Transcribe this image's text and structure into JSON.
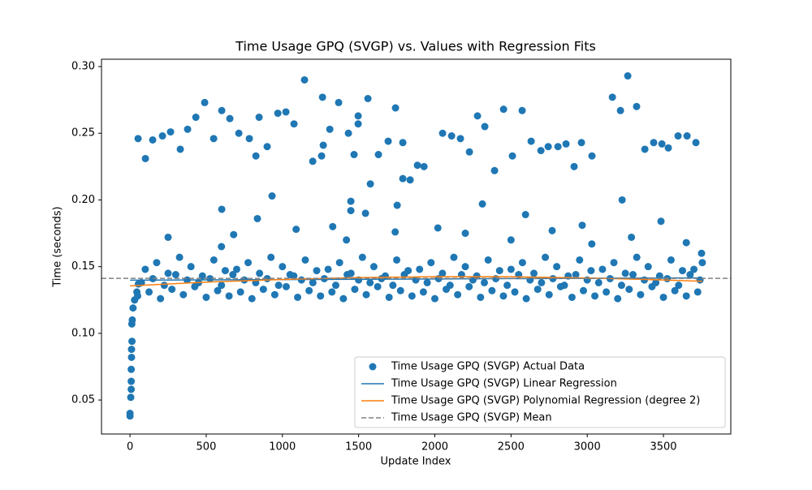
{
  "chart_data": {
    "type": "scatter",
    "title": "Time Usage GPQ (SVGP) vs. Values with Regression Fits",
    "x_label": "Update Index",
    "y_label": "Time (seconds)",
    "xlim": [
      -187,
      3942
    ],
    "ylim": [
      0.0245,
      0.3055
    ],
    "xticks": [
      0,
      500,
      1000,
      1500,
      2000,
      2500,
      3000,
      3500
    ],
    "yticks": [
      0.05,
      {
        "value": 0.1,
        "label": "0.10"
      },
      0.15,
      {
        "value": 0.2,
        "label": "0.20"
      },
      0.25,
      {
        "value": 0.3,
        "label": "0.30"
      }
    ],
    "legend": "lower right",
    "series": [
      {
        "name": "Time Usage GPQ (SVGP) Actual Data",
        "color": "#1f77b4",
        "marker": "o",
        "x": [
          0,
          0,
          5,
          8,
          8,
          8,
          10,
          10,
          13,
          12,
          15,
          20,
          30,
          45,
          55,
          50,
          75,
          100,
          125,
          150,
          175,
          200,
          225,
          250,
          275,
          300,
          325,
          350,
          375,
          400,
          425,
          450,
          475,
          500,
          525,
          550,
          575,
          600,
          625,
          650,
          675,
          700,
          725,
          750,
          775,
          800,
          825,
          850,
          875,
          900,
          925,
          950,
          975,
          1000,
          1025,
          1050,
          1075,
          1100,
          1125,
          1150,
          1175,
          1200,
          1225,
          1250,
          1275,
          1300,
          1325,
          1350,
          1375,
          1400,
          1425,
          1450,
          1475,
          1500,
          1525,
          1550,
          1575,
          1600,
          1625,
          1650,
          1675,
          1700,
          1725,
          1750,
          1775,
          1800,
          1825,
          1850,
          1875,
          1900,
          1925,
          1950,
          1975,
          2000,
          2025,
          2050,
          2075,
          2100,
          2125,
          2150,
          2175,
          2200,
          2225,
          2250,
          2275,
          2300,
          2325,
          2350,
          2375,
          2400,
          2425,
          2450,
          2475,
          2500,
          2525,
          2550,
          2575,
          2600,
          2625,
          2650,
          2675,
          2700,
          2725,
          2750,
          2775,
          2800,
          2825,
          2850,
          2875,
          2900,
          2925,
          2950,
          2975,
          3000,
          3025,
          3050,
          3075,
          3100,
          3125,
          3150,
          3175,
          3200,
          3225,
          3250,
          3275,
          3300,
          3325,
          3350,
          3375,
          3400,
          3425,
          3450,
          3475,
          3500,
          3525,
          3550,
          3575,
          3600,
          3625,
          3650,
          3675,
          3700,
          3725,
          3740,
          3755,
          250,
          600,
          680,
          1090,
          1330,
          1420,
          1740,
          2020,
          2200,
          2500,
          2770,
          3030,
          3290,
          3650,
          3750,
          602,
          932,
          836,
          1449,
          1449,
          1545,
          1577,
          1753,
          2312,
          2595,
          2967,
          3229,
          3484,
          53,
          101,
          149,
          213,
          266,
          330,
          378,
          432,
          490,
          549,
          602,
          655,
          714,
          783,
          826,
          847,
          900,
          970,
          1023,
          1076,
          1145,
          1199,
          1257,
          1263,
          1268,
          1311,
          1369,
          1433,
          1470,
          1497,
          1497,
          1561,
          1630,
          1694,
          1742,
          1790,
          1790,
          1838,
          1886,
          1929,
          2051,
          2110,
          2168,
          2227,
          2280,
          2328,
          2392,
          2451,
          2509,
          2573,
          2632,
          2696,
          2744,
          2808,
          2861,
          2914,
          2962,
          3031,
          3165,
          3218,
          3266,
          3324,
          3378,
          3436,
          3490,
          3532,
          3596,
          3655,
          3713
        ],
        "values": [
          0.04,
          0.038,
          0.052,
          0.058,
          0.064,
          0.073,
          0.082,
          0.088,
          0.094,
          0.107,
          0.11,
          0.119,
          0.125,
          0.131,
          0.137,
          0.128,
          0.138,
          0.148,
          0.131,
          0.141,
          0.153,
          0.126,
          0.136,
          0.145,
          0.133,
          0.144,
          0.157,
          0.129,
          0.14,
          0.15,
          0.135,
          0.138,
          0.143,
          0.127,
          0.141,
          0.155,
          0.132,
          0.136,
          0.147,
          0.128,
          0.144,
          0.148,
          0.131,
          0.14,
          0.153,
          0.126,
          0.138,
          0.145,
          0.133,
          0.141,
          0.157,
          0.129,
          0.136,
          0.15,
          0.135,
          0.144,
          0.143,
          0.127,
          0.14,
          0.155,
          0.132,
          0.138,
          0.147,
          0.128,
          0.141,
          0.148,
          0.131,
          0.136,
          0.153,
          0.126,
          0.144,
          0.145,
          0.133,
          0.14,
          0.157,
          0.129,
          0.138,
          0.15,
          0.135,
          0.141,
          0.143,
          0.127,
          0.136,
          0.155,
          0.132,
          0.144,
          0.147,
          0.128,
          0.14,
          0.148,
          0.131,
          0.138,
          0.153,
          0.126,
          0.141,
          0.145,
          0.133,
          0.136,
          0.157,
          0.129,
          0.144,
          0.15,
          0.135,
          0.14,
          0.143,
          0.127,
          0.138,
          0.155,
          0.132,
          0.141,
          0.147,
          0.128,
          0.136,
          0.148,
          0.131,
          0.144,
          0.153,
          0.126,
          0.14,
          0.145,
          0.133,
          0.138,
          0.157,
          0.129,
          0.141,
          0.15,
          0.135,
          0.136,
          0.143,
          0.127,
          0.144,
          0.155,
          0.132,
          0.14,
          0.147,
          0.128,
          0.138,
          0.148,
          0.131,
          0.141,
          0.153,
          0.126,
          0.136,
          0.145,
          0.133,
          0.144,
          0.157,
          0.129,
          0.14,
          0.15,
          0.135,
          0.138,
          0.143,
          0.127,
          0.141,
          0.155,
          0.132,
          0.136,
          0.147,
          0.128,
          0.144,
          0.148,
          0.131,
          0.14,
          0.153,
          0.172,
          0.165,
          0.174,
          0.178,
          0.18,
          0.17,
          0.176,
          0.179,
          0.175,
          0.17,
          0.177,
          0.167,
          0.172,
          0.168,
          0.16,
          0.193,
          0.203,
          0.186,
          0.199,
          0.192,
          0.19,
          0.212,
          0.196,
          0.197,
          0.189,
          0.181,
          0.2,
          0.184,
          0.246,
          0.231,
          0.245,
          0.248,
          0.251,
          0.238,
          0.253,
          0.262,
          0.273,
          0.246,
          0.267,
          0.261,
          0.25,
          0.246,
          0.233,
          0.262,
          0.24,
          0.265,
          0.266,
          0.257,
          0.29,
          0.229,
          0.233,
          0.277,
          0.241,
          0.253,
          0.273,
          0.25,
          0.234,
          0.263,
          0.257,
          0.276,
          0.234,
          0.244,
          0.269,
          0.243,
          0.216,
          0.215,
          0.226,
          0.225,
          0.25,
          0.248,
          0.246,
          0.236,
          0.263,
          0.255,
          0.222,
          0.268,
          0.233,
          0.267,
          0.244,
          0.237,
          0.24,
          0.24,
          0.242,
          0.225,
          0.243,
          0.233,
          0.277,
          0.267,
          0.293,
          0.27,
          0.238,
          0.243,
          0.242,
          0.239,
          0.248,
          0.248,
          0.243
        ]
      },
      {
        "name": "Time Usage GPQ (SVGP) Linear Regression",
        "color": "#1f77b4",
        "linestyle": "-",
        "x": [
          0,
          3755
        ],
        "values": [
          0.1398,
          0.1416
        ]
      },
      {
        "name": "Time Usage GPQ (SVGP) Polynomial Regression (degree 2)",
        "color": "#ff7f0e",
        "linestyle": "-",
        "x": [
          0,
          500,
          1000,
          1500,
          2000,
          2500,
          3000,
          3500,
          3755
        ],
        "values": [
          0.1356,
          0.1384,
          0.1404,
          0.1418,
          0.1425,
          0.1424,
          0.1415,
          0.14,
          0.139
        ]
      },
      {
        "name": "Time Usage GPQ (SVGP) Mean",
        "color": "#808080",
        "linestyle": "--",
        "value": 0.1412
      }
    ]
  }
}
